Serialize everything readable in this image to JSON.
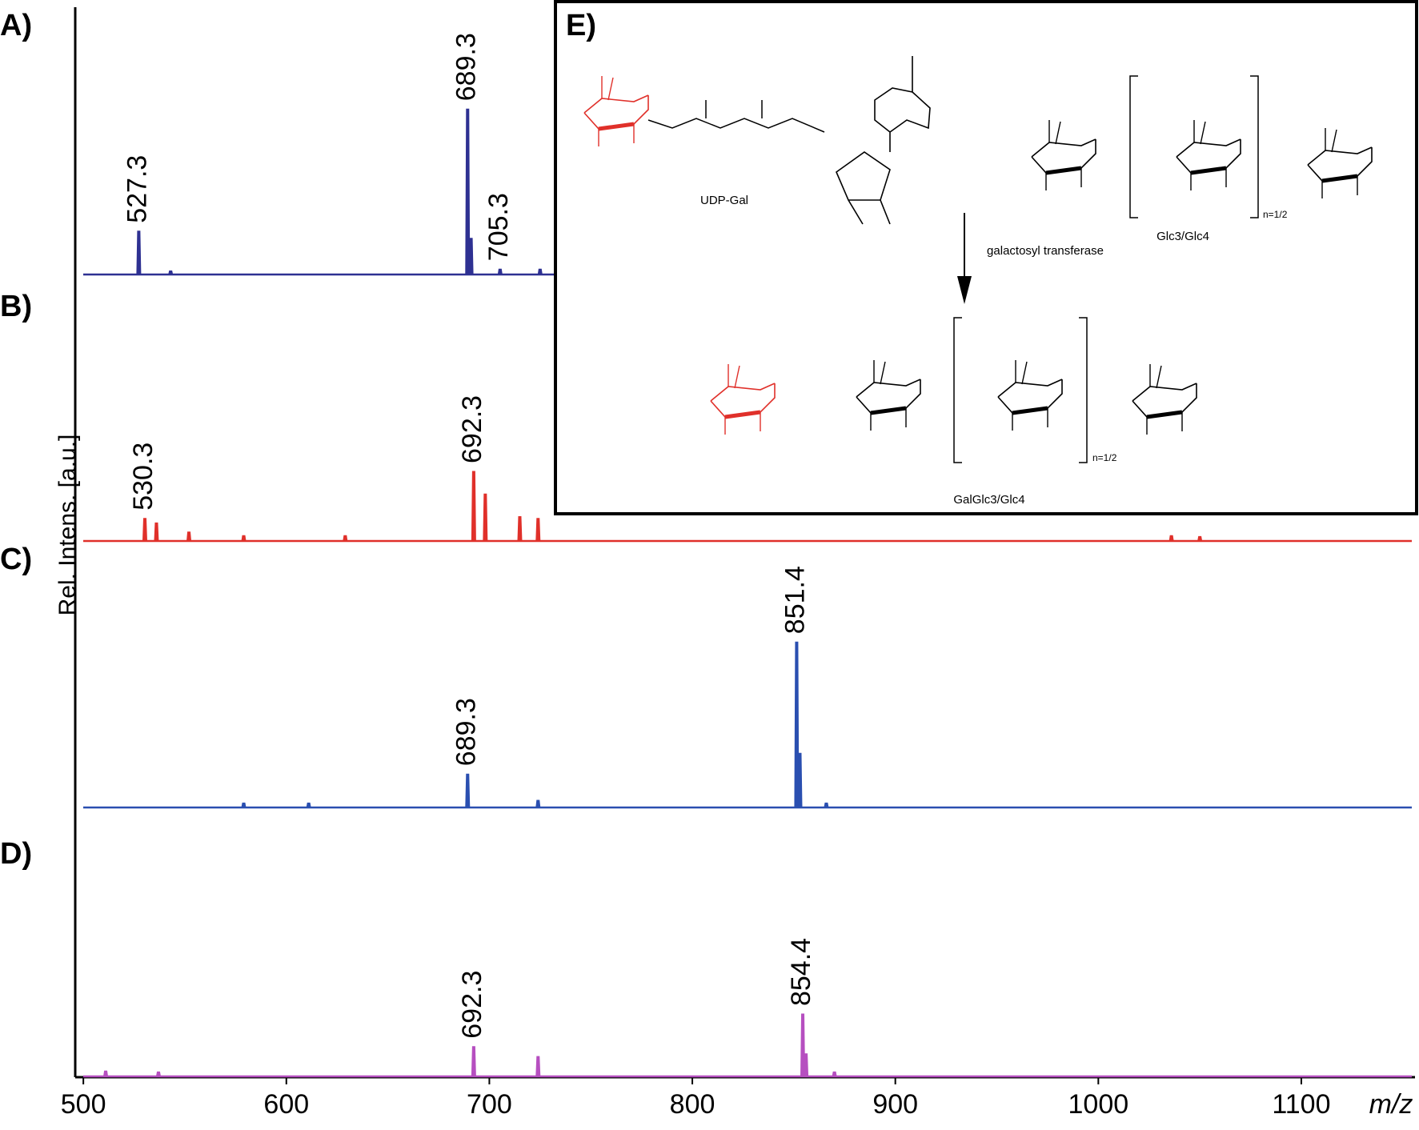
{
  "chart_data": {
    "type": "spectrum",
    "xlabel": "m/z",
    "ylabel": "Rel. Intens. [a.u.]",
    "xlim": [
      496,
      1156
    ],
    "xticks": [
      500,
      600,
      700,
      800,
      900,
      1000,
      1100
    ],
    "ylim": [
      0,
      200
    ],
    "series": [
      {
        "name": "A)",
        "color": "#2e3192",
        "x": [
          527.3,
          543,
          689.3,
          691,
          705.3,
          725
        ],
        "values": [
          48,
          4,
          183,
          40,
          6,
          6
        ],
        "labels": [
          "527.3",
          null,
          "689.3",
          null,
          "705.3",
          null
        ]
      },
      {
        "name": "B)",
        "color": "#e0302a",
        "x": [
          530.3,
          536,
          552,
          579,
          629,
          692.3,
          698,
          715,
          724,
          1036,
          1050
        ],
        "values": [
          25,
          20,
          10,
          6,
          6,
          77,
          52,
          27,
          25,
          6,
          5
        ],
        "labels": [
          "530.3",
          null,
          null,
          null,
          null,
          "692.3",
          null,
          null,
          null,
          null,
          null
        ]
      },
      {
        "name": "C)",
        "color": "#2a4fb0",
        "x": [
          579,
          611,
          689.3,
          724,
          851.4,
          853,
          866
        ],
        "values": [
          5,
          5,
          37,
          8,
          183,
          60,
          5
        ],
        "labels": [
          null,
          null,
          "689.3",
          null,
          "851.4",
          null,
          null
        ]
      },
      {
        "name": "D)",
        "color": "#b64fc0",
        "x": [
          511,
          537,
          692.3,
          724,
          854.4,
          856,
          870
        ],
        "values": [
          6,
          5,
          33,
          22,
          69,
          25,
          5
        ],
        "labels": [
          null,
          null,
          "692.3",
          null,
          "854.4",
          null,
          null
        ]
      }
    ]
  },
  "inset": {
    "label": "E)",
    "donor": "UDP-Gal",
    "acceptor": "Glc3/Glc4",
    "enzyme": "galactosyl transferase",
    "product": "GalGlc3/Glc4",
    "repeat_top": "n=1/2",
    "repeat_bottom": "n=1/2"
  }
}
